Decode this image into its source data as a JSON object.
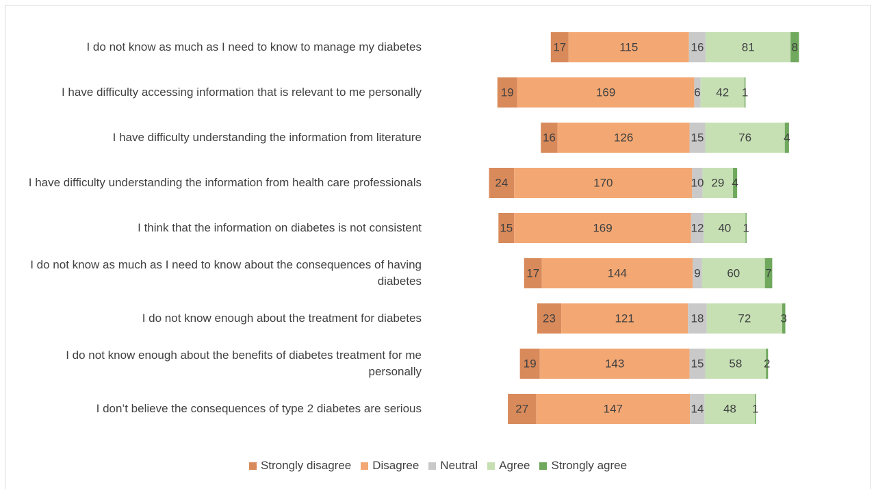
{
  "chart_data": {
    "type": "diverging_bar",
    "categories": [
      "I do not know as much as I need to know to manage my diabetes",
      "I have difficulty accessing information that is relevant to me personally",
      "I have difficulty understanding the information from literature",
      "I have difficulty understanding the information from health care professionals",
      "I think that the information on diabetes is not consistent",
      "I do not know as much as I need to know about the consequences of having diabetes",
      "I do not know enough about the treatment for diabetes",
      "I do not know enough about the benefits of diabetes treatment for me personally",
      "I don’t believe the consequences of type 2 diabetes are serious"
    ],
    "series": [
      {
        "name": "Strongly disagree",
        "color": "#d98a5b",
        "values": [
          17,
          19,
          16,
          24,
          15,
          17,
          23,
          19,
          27
        ]
      },
      {
        "name": "Disagree",
        "color": "#f3a874",
        "values": [
          115,
          169,
          126,
          170,
          169,
          144,
          121,
          143,
          147
        ]
      },
      {
        "name": "Neutral",
        "color": "#c9c9c9",
        "values": [
          16,
          6,
          15,
          10,
          12,
          9,
          18,
          15,
          14
        ]
      },
      {
        "name": "Agree",
        "color": "#c6e0b4",
        "values": [
          81,
          42,
          76,
          29,
          40,
          60,
          72,
          58,
          48
        ]
      },
      {
        "name": "Strongly agree",
        "color": "#70a85e",
        "values": [
          8,
          1,
          4,
          4,
          1,
          7,
          3,
          2,
          1
        ]
      }
    ],
    "legend": "bottom"
  }
}
